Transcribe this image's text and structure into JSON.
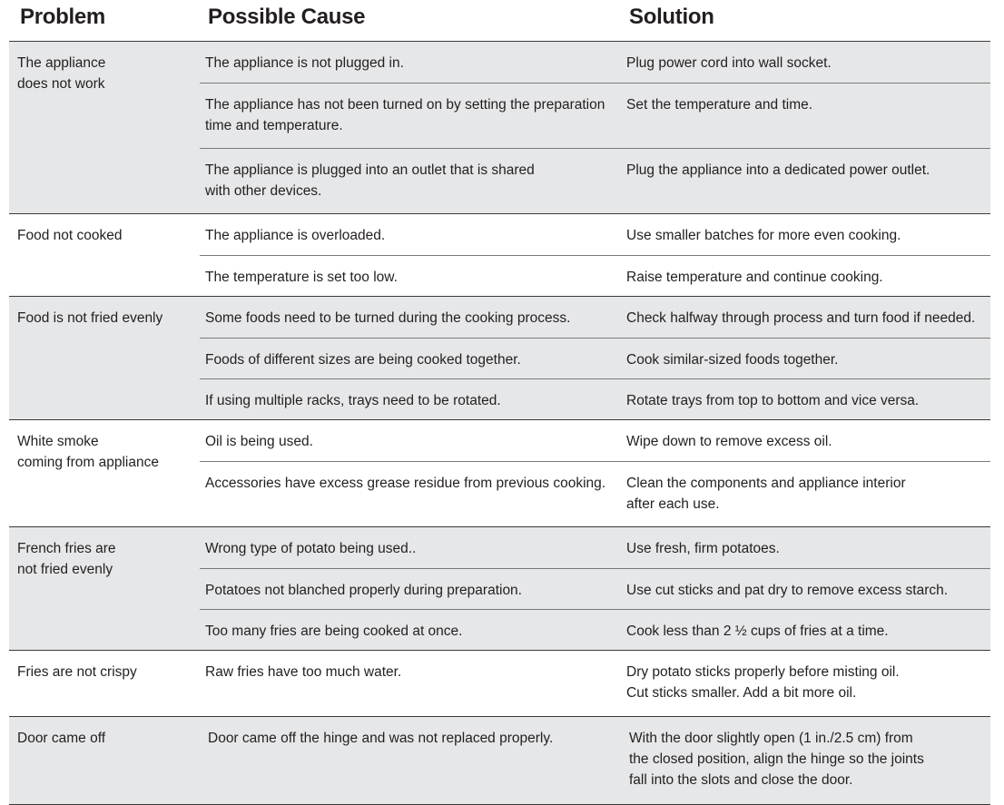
{
  "headers": {
    "problem": "Problem",
    "cause": "Possible Cause",
    "solution": "Solution"
  },
  "groups": [
    {
      "problem": "The appliance\ndoes not work",
      "rows": [
        {
          "cause": "The appliance is not plugged in.",
          "solution": "Plug power cord into wall socket."
        },
        {
          "cause": "The appliance has not been turned on by setting the preparation\ntime and temperature.",
          "solution": "Set the temperature and time."
        },
        {
          "cause": "The appliance is plugged into an outlet that is shared\nwith other devices.",
          "solution": "Plug the appliance into a dedicated power outlet."
        }
      ]
    },
    {
      "problem": "Food not cooked",
      "rows": [
        {
          "cause": "The appliance is overloaded.",
          "solution": "Use smaller batches for more even cooking."
        },
        {
          "cause": "The temperature is set too low.",
          "solution": "Raise temperature and continue cooking."
        }
      ]
    },
    {
      "problem": "Food is not fried evenly",
      "rows": [
        {
          "cause": "Some foods need to be turned during the cooking process.",
          "solution": "Check halfway through process and turn food if needed."
        },
        {
          "cause": "Foods of different sizes are being cooked together.",
          "solution": "Cook similar-sized foods together."
        },
        {
          "cause": "If using multiple racks, trays need to be rotated.",
          "solution": "Rotate trays from top to bottom and vice versa."
        }
      ]
    },
    {
      "problem": "White smoke\ncoming from appliance",
      "rows": [
        {
          "cause": "Oil is being used.",
          "solution": "Wipe down to remove excess oil."
        },
        {
          "cause": "Accessories have excess grease residue from previous cooking.",
          "solution": "Clean the components and appliance interior\nafter each use."
        }
      ]
    },
    {
      "problem": "French fries are\nnot fried evenly",
      "rows": [
        {
          "cause": "Wrong type of potato being used..",
          "solution": "Use fresh, firm potatoes."
        },
        {
          "cause": "Potatoes not blanched properly during preparation.",
          "solution": "Use cut sticks and pat dry to remove excess starch."
        },
        {
          "cause": "Too many fries are being cooked at once.",
          "solution": "Cook less than 2 ½ cups of fries at a time."
        }
      ]
    },
    {
      "problem": "Fries are not crispy",
      "rows": [
        {
          "cause": "Raw fries have too much water.",
          "solution": "Dry potato sticks properly before misting oil.\nCut sticks smaller. Add a bit more oil."
        }
      ]
    },
    {
      "problem": "Door came off",
      "rows": [
        {
          "cause": "Door came off the hinge and was not replaced properly.",
          "solution": "With the door slightly open (1 in./2.5 cm) from\nthe closed position, align the hinge so the joints\nfall into the slots and close the door."
        }
      ]
    }
  ],
  "colors": {
    "shade": "#e6e7e8",
    "text": "#231f20",
    "rule": "#3a3a3a"
  }
}
